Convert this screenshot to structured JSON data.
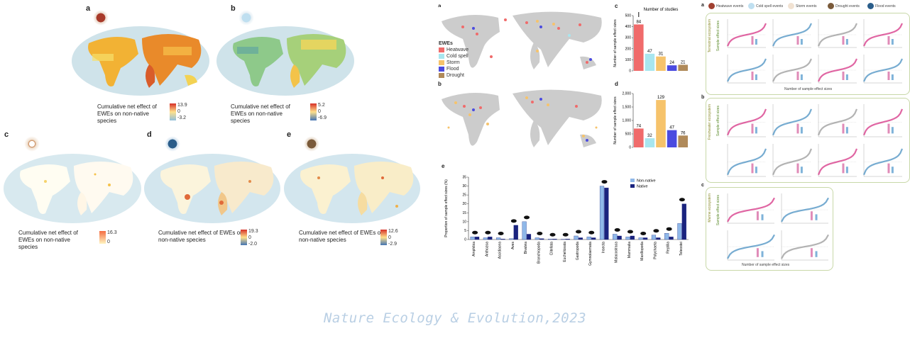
{
  "left_maps": {
    "a": {
      "label": "a",
      "caption": "Cumulative net effect of EWEs on non-native species",
      "scale": [
        "13.9",
        "0",
        "-3.2"
      ]
    },
    "b": {
      "label": "b",
      "caption": "Cumulative net effect of EWEs on non-native species",
      "scale": [
        "5.2",
        "0",
        "-6.9"
      ]
    },
    "c": {
      "label": "c",
      "caption": "Cumulative net effect of EWEs on non-native species",
      "scale": [
        "16.3",
        "0"
      ]
    },
    "d": {
      "label": "d",
      "caption": "Cumulative net effect of EWEs on non-native species",
      "scale": [
        "19.3",
        "0",
        "-2.0"
      ]
    },
    "e": {
      "label": "e",
      "caption": "Cumulative net effect of EWEs on non-native species",
      "scale": [
        "12.6",
        "0",
        "-2.9"
      ]
    }
  },
  "middle": {
    "label_a": "a",
    "label_b": "b",
    "label_c": "c",
    "label_d": "d",
    "label_e": "e",
    "legend_title": "EWEs",
    "legend_items": [
      {
        "name": "Heatwave",
        "color": "#f06b6b"
      },
      {
        "name": "Cold spell",
        "color": "#a8e6ef"
      },
      {
        "name": "Storm",
        "color": "#f6c36b"
      },
      {
        "name": "Flood",
        "color": "#4b4be0"
      },
      {
        "name": "Drought",
        "color": "#b08a5a"
      }
    ]
  },
  "chart_data": [
    {
      "type": "bar",
      "title": "Number of studies",
      "ylabel": "Number of sample effect sizes",
      "ylim": [
        0,
        500
      ],
      "yticks": [
        "0",
        "100",
        "200",
        "300",
        "400",
        "500"
      ],
      "categories": [
        "Heatwave",
        "Cold spell",
        "Storm",
        "Flood",
        "Drought"
      ],
      "values": [
        84,
        47,
        31,
        24,
        21
      ],
      "colors": [
        "#f06b6b",
        "#a8e6ef",
        "#f6c36b",
        "#4b4be0",
        "#b08a5a"
      ]
    },
    {
      "type": "bar",
      "ylabel": "Number of sample effect sizes",
      "ylim": [
        0,
        2000
      ],
      "yticks": [
        "0",
        "500",
        "1,000",
        "1,500",
        "2,000"
      ],
      "categories": [
        "Heatwave",
        "Cold spell",
        "Storm",
        "Flood",
        "Drought"
      ],
      "values": [
        74,
        32,
        129,
        47,
        76
      ],
      "colors": [
        "#f06b6b",
        "#a8e6ef",
        "#f6c36b",
        "#4b4be0",
        "#b08a5a"
      ]
    },
    {
      "type": "bar",
      "ylabel": "Proportion of sample effect sizes (%)",
      "yticks": [
        "0",
        "5",
        "10",
        "15",
        "20",
        "25",
        "30",
        "35"
      ],
      "legend": [
        "Non-native",
        "Native"
      ],
      "categories": [
        "Amphibia",
        "Anthozoa",
        "Ascidiacea",
        "Aves",
        "Bivalvia",
        "Branchiopoda",
        "Clitellata",
        "Eucheliceata",
        "Gastropoda",
        "Gymnolaemata",
        "Insecta",
        "Malacostraca",
        "Mammalia",
        "Maxillopoda",
        "Polychaeta",
        "Reptilia",
        "Teleostei"
      ],
      "series": [
        {
          "name": "Non-native",
          "values": [
            1.5,
            1.0,
            1.0,
            0.5,
            10.0,
            1.0,
            0.3,
            0.2,
            2.0,
            1.5,
            30.0,
            3.0,
            1.5,
            1.0,
            2.5,
            3.5,
            9.0
          ]
        },
        {
          "name": "Native",
          "values": [
            1.5,
            1.5,
            0.3,
            8.0,
            3.0,
            0.5,
            0.3,
            0.3,
            1.0,
            1.0,
            29.0,
            2.0,
            2.0,
            1.0,
            1.0,
            1.5,
            20.0
          ]
        }
      ]
    }
  ],
  "right": {
    "label_a": "a",
    "label_b": "b",
    "label_c": "c",
    "legend": [
      "Heatwave events",
      "Cold spell events",
      "Storm events",
      "Drought events",
      "Flood events"
    ],
    "row_labels": [
      "Terrestrial ecosystem",
      "Freshwater ecosystem",
      "Marine ecosystem"
    ],
    "axis_y": "Sample effect sizes",
    "axis_x": "Number of sample effect sizes"
  },
  "footer": "Nature Ecology & Evolution,2023"
}
